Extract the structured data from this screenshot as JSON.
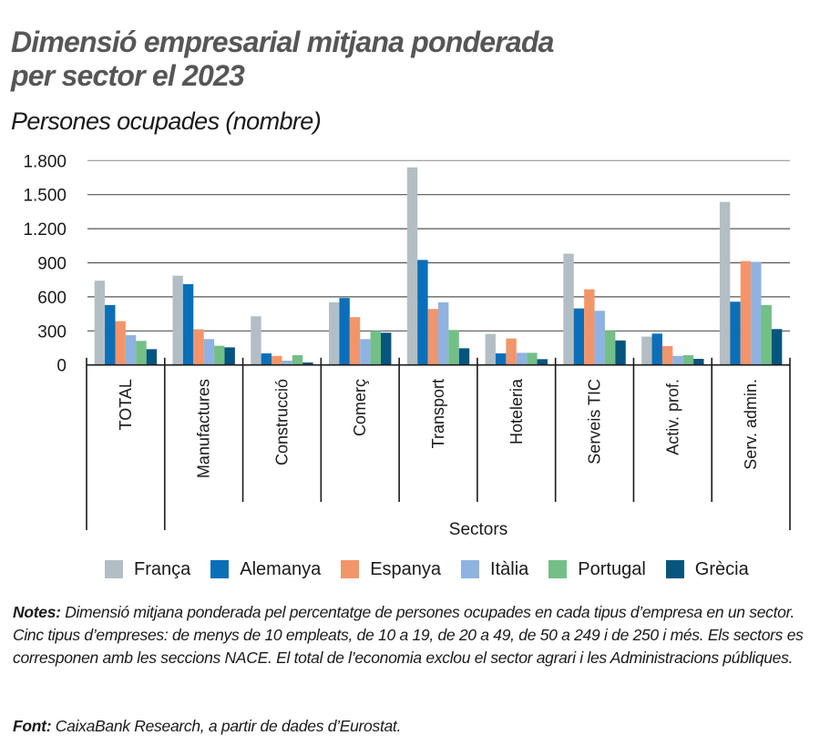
{
  "header": {
    "title_line1": "Dimensió empresarial mitjana ponderada",
    "title_line2": "per sector el 2023",
    "subtitle": "Persones ocupades (nombre)"
  },
  "legend": [
    {
      "label": "França",
      "color": "#b3bec4"
    },
    {
      "label": "Alemanya",
      "color": "#0a6fb8"
    },
    {
      "label": "Espanya",
      "color": "#f2956b"
    },
    {
      "label": "Itàlia",
      "color": "#8fb3e0"
    },
    {
      "label": "Portugal",
      "color": "#73bf87"
    },
    {
      "label": "Grècia",
      "color": "#05557f"
    }
  ],
  "notes": {
    "label": "Notes:",
    "text": "Dimensió mitjana ponderada pel percentatge de persones ocupades en cada tipus d’empresa en un sector. Cinc tipus d’empreses: de menys de 10 empleats, de 10 a 19, de 20 a 49, de 50 a 249 i de 250 i més. Els sectors es corresponen amb les seccions NACE. El total de l’economia exclou el sector agrari i les Administracions públiques."
  },
  "source": {
    "label": "Font:",
    "text": "CaixaBank Research, a partir de dades d’Eurostat."
  },
  "chart_data": {
    "type": "bar",
    "title": "Dimensió empresarial mitjana ponderada per sector el 2023",
    "subtitle": "Persones ocupades (nombre)",
    "xlabel": "Sectors",
    "ylabel": "",
    "ylim": [
      0,
      1800
    ],
    "yticks": [
      0,
      300,
      600,
      900,
      1200,
      1500,
      1800
    ],
    "ytick_labels": [
      "0",
      "300",
      "600",
      "900",
      "1.200",
      "1.500",
      "1.800"
    ],
    "grid": true,
    "legend_position": "bottom",
    "categories": [
      "TOTAL",
      "Manufactures",
      "Construcció",
      "Comerç",
      "Transport",
      "Hoteleria",
      "Serveis TIC",
      "Activ. prof.",
      "Serv. admin."
    ],
    "series": [
      {
        "name": "França",
        "color": "#b3bec4",
        "values": [
          742,
          786,
          429,
          552,
          1740,
          273,
          980,
          250,
          1436
        ]
      },
      {
        "name": "Alemanya",
        "color": "#0a6fb8",
        "values": [
          528,
          712,
          102,
          590,
          925,
          102,
          498,
          276,
          557
        ]
      },
      {
        "name": "Espanya",
        "color": "#f2956b",
        "values": [
          386,
          314,
          80,
          421,
          493,
          233,
          666,
          166,
          915
        ]
      },
      {
        "name": "Itàlia",
        "color": "#8fb3e0",
        "values": [
          263,
          228,
          38,
          228,
          552,
          107,
          477,
          80,
          908
        ]
      },
      {
        "name": "Portugal",
        "color": "#73bf87",
        "values": [
          212,
          169,
          86,
          300,
          308,
          107,
          301,
          86,
          528
        ]
      },
      {
        "name": "Grècia",
        "color": "#05557f",
        "values": [
          139,
          155,
          22,
          284,
          147,
          51,
          216,
          54,
          316
        ]
      }
    ]
  }
}
